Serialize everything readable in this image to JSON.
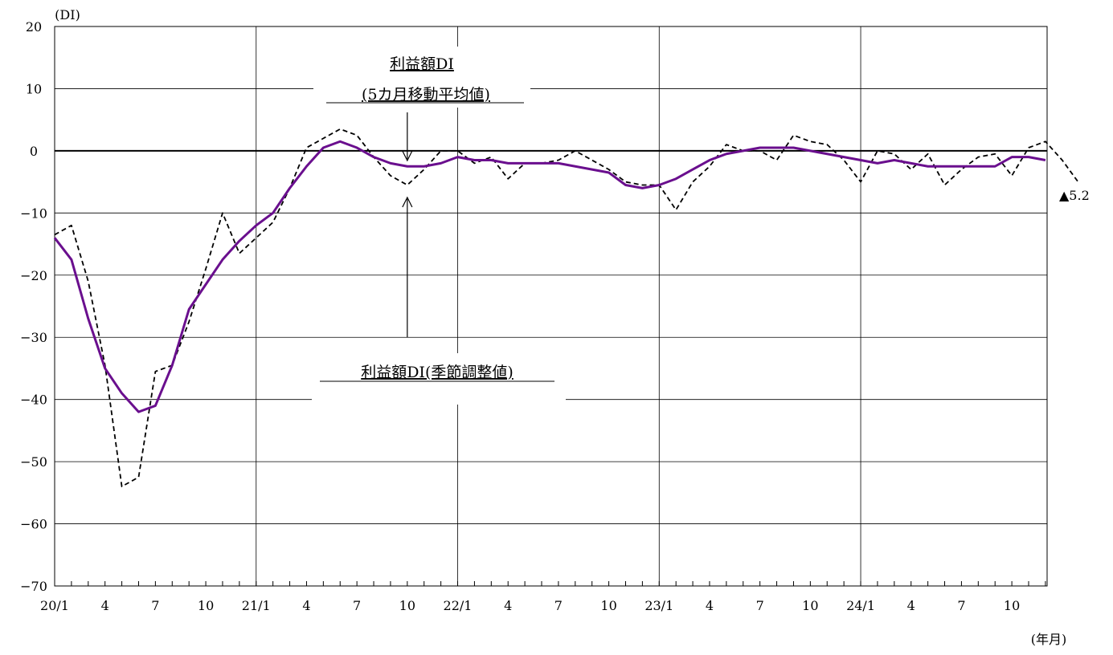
{
  "chart_data": {
    "type": "line",
    "y_unit_label": "(DI)",
    "x_unit_label": "(年月)",
    "ylim": [
      -70,
      20
    ],
    "yticks": [
      20,
      10,
      0,
      -10,
      -20,
      -30,
      -40,
      -50,
      -60,
      -70
    ],
    "ytick_labels": [
      "20",
      "10",
      "0",
      "−10",
      "−20",
      "−30",
      "−40",
      "−50",
      "−60",
      "−70"
    ],
    "grid": true,
    "x_tick_labels": [
      "20/1",
      "4",
      "7",
      "10",
      "21/1",
      "4",
      "7",
      "10",
      "22/1",
      "4",
      "7",
      "10",
      "23/1",
      "4",
      "7",
      "10",
      "24/1",
      "4",
      "7",
      "10"
    ],
    "year_boundaries": [
      "21/1",
      "22/1",
      "23/1",
      "24/1"
    ],
    "series": [
      {
        "name": "利益額DI(季節調整値)",
        "style": "dashed",
        "color": "#000000",
        "start": "2020-01",
        "values": [
          -13.5,
          -12.0,
          -21.0,
          -34.5,
          -54.0,
          -52.5,
          -35.5,
          -34.5,
          -27.5,
          -19.0,
          -10.0,
          -16.5,
          -14.0,
          -11.5,
          -6.0,
          0.5,
          2.0,
          3.5,
          2.5,
          -1.0,
          -4.0,
          -5.5,
          -3.0,
          0.0,
          0.0,
          -2.0,
          -1.0,
          -4.5,
          -2.0,
          -2.0,
          -1.5,
          0.0,
          -1.5,
          -3.0,
          -5.0,
          -5.5,
          -5.5,
          -9.5,
          -5.0,
          -2.5,
          1.0,
          0.0,
          0.0,
          -1.5,
          2.5,
          1.5,
          1.0,
          -1.5,
          -5.0,
          0.0,
          -0.5,
          -3.0,
          -0.5,
          -5.5,
          -3.0,
          -1.0,
          -0.5,
          -4.0,
          0.5,
          1.5,
          -1.5,
          -5.2
        ]
      },
      {
        "name": "利益額DI(5カ月移動平均値)",
        "style": "solid",
        "color": "#6a0f8e",
        "start": "2020-01",
        "values": [
          -14.0,
          -17.5,
          -27.0,
          -35.0,
          -39.0,
          -42.0,
          -41.0,
          -34.5,
          -25.5,
          -21.5,
          -17.5,
          -14.5,
          -12.0,
          -10.0,
          -6.0,
          -2.5,
          0.5,
          1.5,
          0.5,
          -1.0,
          -2.0,
          -2.5,
          -2.5,
          -2.0,
          -1.0,
          -1.5,
          -1.5,
          -2.0,
          -2.0,
          -2.0,
          -2.0,
          -2.5,
          -3.0,
          -3.5,
          -5.5,
          -6.0,
          -5.5,
          -4.5,
          -3.0,
          -1.5,
          -0.5,
          0.0,
          0.5,
          0.5,
          0.5,
          0.0,
          -0.5,
          -1.0,
          -1.5,
          -2.0,
          -1.5,
          -2.0,
          -2.5,
          -2.5,
          -2.5,
          -2.5,
          -2.5,
          -1.0,
          -1.0,
          -1.5
        ]
      }
    ],
    "end_label": "▲5.2",
    "annotations": [
      {
        "line1": "利益額DI",
        "line2": "(5カ月移動平均値)",
        "arrow_target_month": 21
      },
      {
        "line1": "利益額DI(季節調整値)",
        "arrow_target_month": 21
      }
    ]
  }
}
